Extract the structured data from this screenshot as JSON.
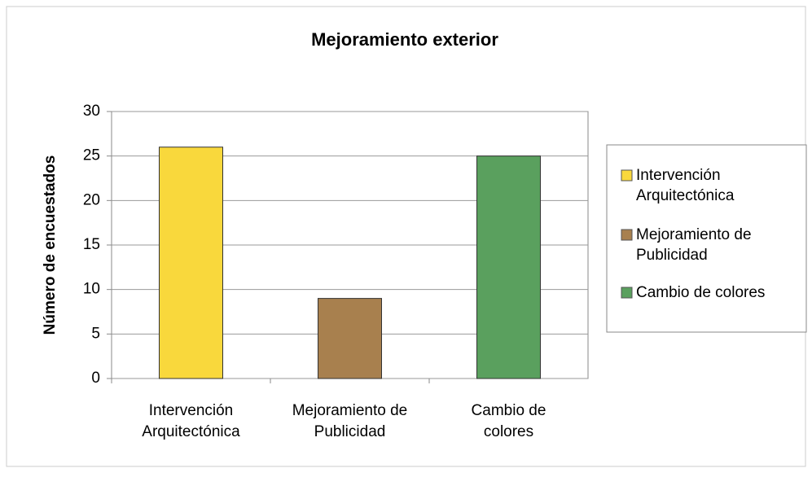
{
  "chart_data": {
    "type": "bar",
    "title": "Mejoramiento exterior",
    "y_label": "Número de encuestados",
    "categories": [
      [
        "Intervención",
        "Arquitectónica"
      ],
      [
        "Mejoramiento de",
        "Publicidad"
      ],
      [
        "Cambio de",
        "colores"
      ]
    ],
    "series": [
      {
        "name": [
          "Intervención",
          "Arquitectónica"
        ],
        "color": "#f9d83c",
        "values": [
          26,
          null,
          null
        ]
      },
      {
        "name": [
          "Mejoramiento de",
          "Publicidad"
        ],
        "color": "#a8804e",
        "values": [
          null,
          9,
          null
        ]
      },
      {
        "name": [
          "Cambio de colores"
        ],
        "color": "#5aa05e",
        "values": [
          null,
          null,
          25
        ]
      }
    ],
    "ylim": [
      0,
      30
    ],
    "yticks": [
      0,
      5,
      10,
      15,
      20,
      25,
      30
    ],
    "grid": true,
    "legend": "right"
  }
}
